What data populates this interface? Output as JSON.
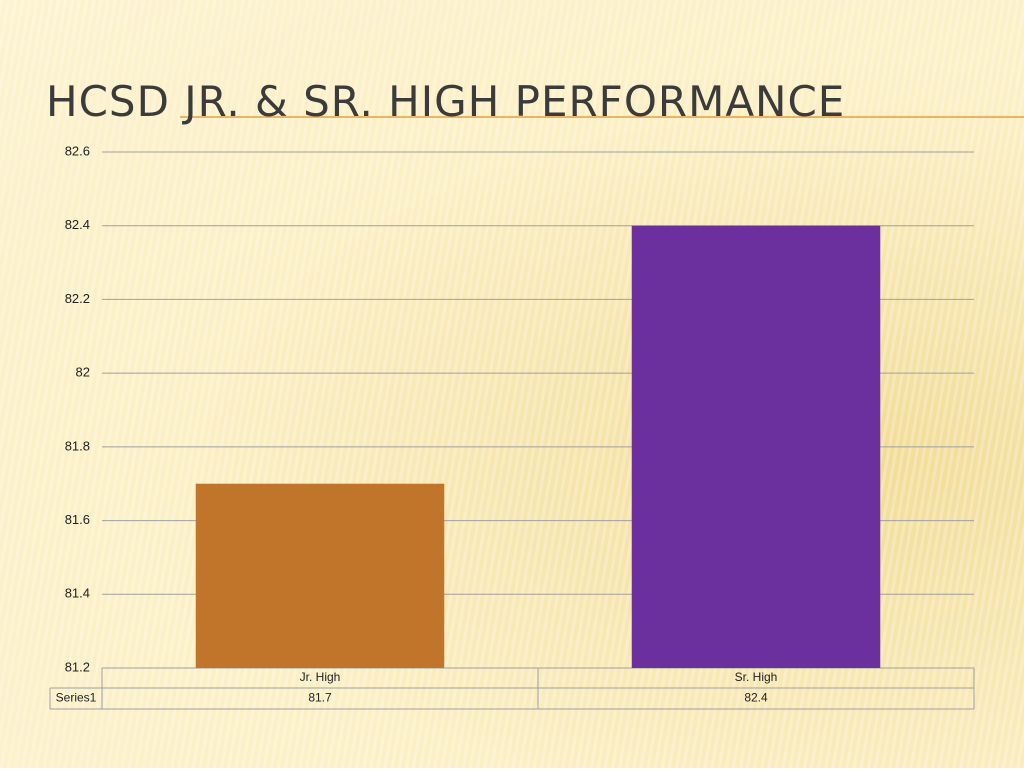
{
  "chart_data": {
    "type": "bar",
    "title": "HCSD JR. & SR. HIGH PERFORMANCE",
    "categories": [
      "Jr. High",
      "Sr. High"
    ],
    "series": [
      {
        "name": "Series1",
        "colors": [
          "#c0752a",
          "#6b2f9e"
        ],
        "values": [
          81.7,
          82.4
        ]
      }
    ],
    "ylim": [
      81.2,
      82.6
    ],
    "yticks": [
      81.2,
      81.4,
      81.6,
      81.8,
      82,
      82.2,
      82.4,
      82.6
    ],
    "grid": true,
    "data_table": true
  }
}
